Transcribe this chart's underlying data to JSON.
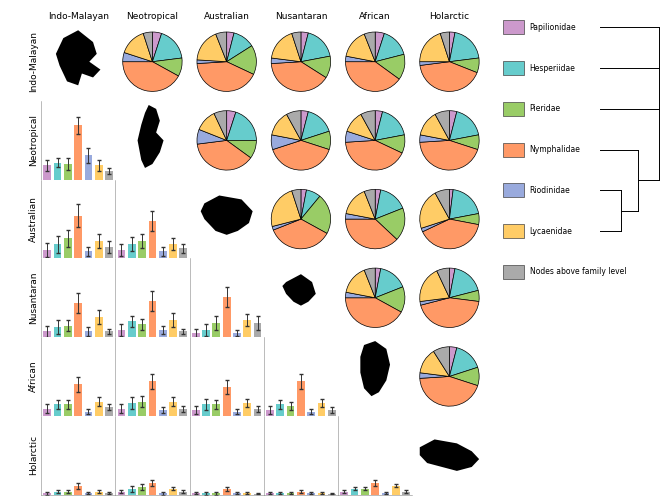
{
  "realms": [
    "Indo-Malayan",
    "Neotropical",
    "Australian",
    "Nusantaran",
    "African",
    "Holarctic"
  ],
  "colors": {
    "Papilionidae": "#cc99cc",
    "Hesperiidae": "#66cccc",
    "Pieridae": "#99cc66",
    "Nymphalidae": "#ff9966",
    "Riodinidae": "#99aadd",
    "Lycaenidae": "#ffcc66",
    "Nodes": "#aaaaaa"
  },
  "legend_labels": [
    "Papilionidae",
    "Hesperiidae",
    "Pieridae",
    "Nymphalidae",
    "Riodinidae",
    "Lycaenidae",
    "Nodes above family level"
  ],
  "pie_data": {
    "0_1": [
      0.05,
      0.18,
      0.1,
      0.42,
      0.05,
      0.15,
      0.05
    ],
    "0_2": [
      0.04,
      0.12,
      0.16,
      0.42,
      0.02,
      0.18,
      0.06
    ],
    "0_3": [
      0.04,
      0.18,
      0.12,
      0.4,
      0.03,
      0.18,
      0.05
    ],
    "0_4": [
      0.05,
      0.16,
      0.14,
      0.4,
      0.03,
      0.16,
      0.06
    ],
    "0_5": [
      0.03,
      0.2,
      0.08,
      0.42,
      0.02,
      0.2,
      0.05
    ],
    "1_2": [
      0.05,
      0.2,
      0.1,
      0.38,
      0.08,
      0.12,
      0.07
    ],
    "1_3": [
      0.04,
      0.16,
      0.1,
      0.4,
      0.08,
      0.14,
      0.08
    ],
    "1_4": [
      0.04,
      0.18,
      0.1,
      0.42,
      0.06,
      0.12,
      0.08
    ],
    "1_5": [
      0.04,
      0.18,
      0.08,
      0.44,
      0.04,
      0.14,
      0.08
    ],
    "2_3": [
      0.03,
      0.08,
      0.22,
      0.36,
      0.02,
      0.24,
      0.05
    ],
    "2_4": [
      0.03,
      0.16,
      0.18,
      0.38,
      0.03,
      0.16,
      0.06
    ],
    "2_5": [
      0.02,
      0.2,
      0.06,
      0.4,
      0.02,
      0.22,
      0.08
    ],
    "3_4": [
      0.03,
      0.16,
      0.14,
      0.42,
      0.03,
      0.16,
      0.06
    ],
    "3_5": [
      0.03,
      0.18,
      0.06,
      0.44,
      0.02,
      0.2,
      0.07
    ],
    "4_5": [
      0.04,
      0.16,
      0.1,
      0.44,
      0.03,
      0.14,
      0.09
    ]
  },
  "bar_data": {
    "1_0": {
      "means": [
        0.1,
        0.12,
        0.11,
        0.38,
        0.17,
        0.1,
        0.06
      ],
      "errors": [
        0.04,
        0.03,
        0.04,
        0.06,
        0.05,
        0.04,
        0.02
      ]
    },
    "2_0": {
      "means": [
        0.06,
        0.1,
        0.14,
        0.3,
        0.05,
        0.12,
        0.08
      ],
      "errors": [
        0.05,
        0.06,
        0.06,
        0.08,
        0.03,
        0.05,
        0.04
      ]
    },
    "2_1": {
      "means": [
        0.06,
        0.1,
        0.12,
        0.26,
        0.05,
        0.1,
        0.07
      ],
      "errors": [
        0.04,
        0.05,
        0.05,
        0.07,
        0.03,
        0.04,
        0.03
      ]
    },
    "3_0": {
      "means": [
        0.04,
        0.07,
        0.08,
        0.24,
        0.04,
        0.14,
        0.04
      ],
      "errors": [
        0.04,
        0.05,
        0.04,
        0.07,
        0.03,
        0.05,
        0.02
      ]
    },
    "3_1": {
      "means": [
        0.05,
        0.11,
        0.09,
        0.25,
        0.05,
        0.12,
        0.04
      ],
      "errors": [
        0.04,
        0.04,
        0.04,
        0.07,
        0.03,
        0.05,
        0.02
      ]
    },
    "3_2": {
      "means": [
        0.03,
        0.05,
        0.1,
        0.28,
        0.03,
        0.12,
        0.1
      ],
      "errors": [
        0.03,
        0.04,
        0.05,
        0.07,
        0.02,
        0.04,
        0.05
      ]
    },
    "4_0": {
      "means": [
        0.05,
        0.08,
        0.08,
        0.22,
        0.03,
        0.1,
        0.06
      ],
      "errors": [
        0.03,
        0.03,
        0.03,
        0.05,
        0.02,
        0.03,
        0.02
      ]
    },
    "4_1": {
      "means": [
        0.05,
        0.09,
        0.1,
        0.24,
        0.04,
        0.1,
        0.05
      ],
      "errors": [
        0.03,
        0.04,
        0.04,
        0.05,
        0.02,
        0.03,
        0.02
      ]
    },
    "4_2": {
      "means": [
        0.04,
        0.08,
        0.08,
        0.2,
        0.03,
        0.09,
        0.05
      ],
      "errors": [
        0.03,
        0.04,
        0.03,
        0.05,
        0.02,
        0.03,
        0.02
      ]
    },
    "4_3": {
      "means": [
        0.04,
        0.08,
        0.07,
        0.24,
        0.03,
        0.09,
        0.04
      ],
      "errors": [
        0.03,
        0.03,
        0.03,
        0.05,
        0.02,
        0.03,
        0.02
      ]
    },
    "5_0": {
      "means": [
        0.01,
        0.02,
        0.02,
        0.06,
        0.01,
        0.02,
        0.01
      ],
      "errors": [
        0.01,
        0.01,
        0.01,
        0.02,
        0.005,
        0.01,
        0.005
      ]
    },
    "5_1": {
      "means": [
        0.02,
        0.04,
        0.05,
        0.08,
        0.01,
        0.04,
        0.02
      ],
      "errors": [
        0.01,
        0.02,
        0.02,
        0.02,
        0.01,
        0.01,
        0.01
      ]
    },
    "5_2": {
      "means": [
        0.01,
        0.01,
        0.01,
        0.04,
        0.01,
        0.01,
        0.005
      ],
      "errors": [
        0.005,
        0.01,
        0.01,
        0.015,
        0.005,
        0.005,
        0.003
      ]
    },
    "5_3": {
      "means": [
        0.01,
        0.01,
        0.01,
        0.02,
        0.01,
        0.01,
        0.005
      ],
      "errors": [
        0.005,
        0.005,
        0.005,
        0.01,
        0.005,
        0.005,
        0.003
      ]
    },
    "5_4": {
      "means": [
        0.02,
        0.04,
        0.04,
        0.08,
        0.01,
        0.06,
        0.02
      ],
      "errors": [
        0.01,
        0.01,
        0.01,
        0.02,
        0.005,
        0.01,
        0.01
      ]
    }
  },
  "background_color": "#ffffff",
  "cell_edge_color": "#888888",
  "header_fontsize": 6.5,
  "bar_ylim_global": 0.55
}
